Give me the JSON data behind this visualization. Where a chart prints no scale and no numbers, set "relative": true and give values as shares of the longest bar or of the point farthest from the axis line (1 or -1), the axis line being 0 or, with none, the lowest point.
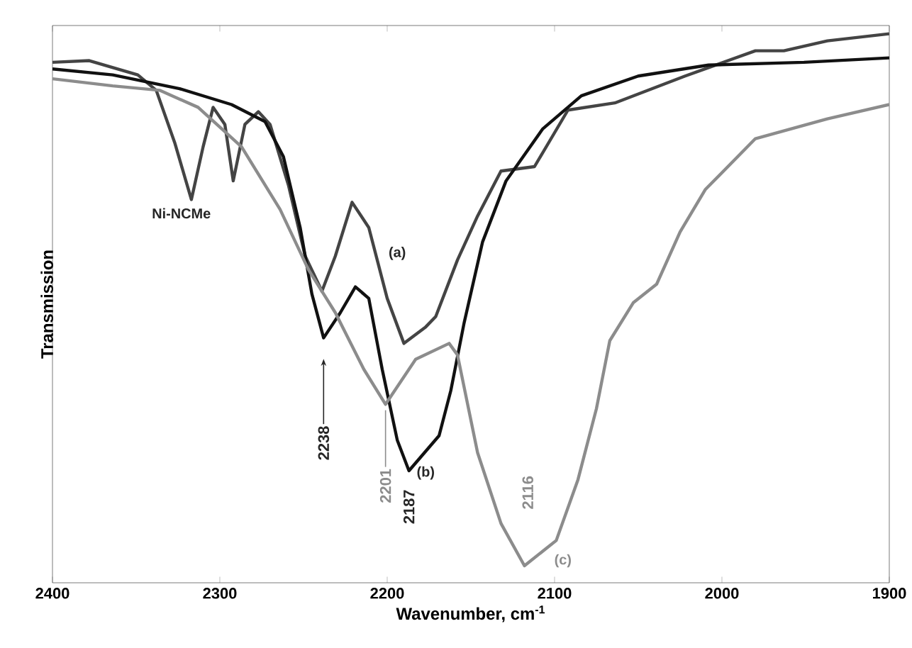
{
  "chart_data": {
    "type": "line",
    "relative": true,
    "xlabel": "Wavenumber, cm$^{-1}$",
    "ylabel": "Transmission",
    "xlim": [
      2400,
      1900
    ],
    "xticks": [
      2400,
      2300,
      2200,
      2100,
      2000,
      1900
    ],
    "grid": false,
    "marker": "none",
    "line_style": "solid",
    "series": [
      {
        "color": "#444444",
        "x": [
          2400,
          2378,
          2349,
          2338,
          2327,
          2317,
          2310,
          2304,
          2297,
          2292,
          2285,
          2277,
          2270,
          2259,
          2249,
          2239,
          2231,
          2221,
          2211,
          2200,
          2190,
          2177,
          2171,
          2158,
          2146,
          2132,
          2112,
          2092,
          2064,
          2022,
          1980,
          1963,
          1937,
          1900
        ],
        "values": [
          0.948,
          0.951,
          0.925,
          0.897,
          0.802,
          0.698,
          0.794,
          0.866,
          0.835,
          0.732,
          0.835,
          0.858,
          0.835,
          0.724,
          0.595,
          0.531,
          0.595,
          0.693,
          0.647,
          0.518,
          0.436,
          0.466,
          0.485,
          0.588,
          0.668,
          0.75,
          0.758,
          0.861,
          0.874,
          0.923,
          0.969,
          0.969,
          0.987,
          1.0
        ]
      },
      {
        "color": "#111111",
        "x": [
          2400,
          2364,
          2324,
          2293,
          2273,
          2262,
          2252,
          2245,
          2238,
          2228,
          2219,
          2211,
          2203,
          2194,
          2187,
          2169,
          2162,
          2154,
          2143,
          2129,
          2107,
          2084,
          2050,
          2008,
          1951,
          1900
        ],
        "values": [
          0.936,
          0.925,
          0.9,
          0.871,
          0.84,
          0.776,
          0.647,
          0.526,
          0.446,
          0.492,
          0.539,
          0.518,
          0.389,
          0.26,
          0.204,
          0.268,
          0.35,
          0.474,
          0.621,
          0.732,
          0.827,
          0.887,
          0.923,
          0.943,
          0.948,
          0.956
        ]
      },
      {
        "color": "#8c8c8c",
        "x": [
          2400,
          2364,
          2336,
          2313,
          2287,
          2264,
          2247,
          2231,
          2214,
          2201,
          2183,
          2163,
          2158,
          2146,
          2132,
          2118,
          2099,
          2086,
          2075,
          2067,
          2053,
          2039,
          2025,
          2010,
          1980,
          1937,
          1900
        ],
        "values": [
          0.918,
          0.905,
          0.897,
          0.866,
          0.794,
          0.68,
          0.57,
          0.492,
          0.389,
          0.325,
          0.407,
          0.436,
          0.415,
          0.237,
          0.108,
          0.031,
          0.077,
          0.188,
          0.317,
          0.441,
          0.51,
          0.544,
          0.639,
          0.716,
          0.809,
          0.845,
          0.871
        ]
      }
    ],
    "annotations": [
      "Ni-NCMe",
      "(a)",
      "(b)",
      "(c)",
      "2238",
      "2201",
      "2187",
      "2116"
    ]
  }
}
